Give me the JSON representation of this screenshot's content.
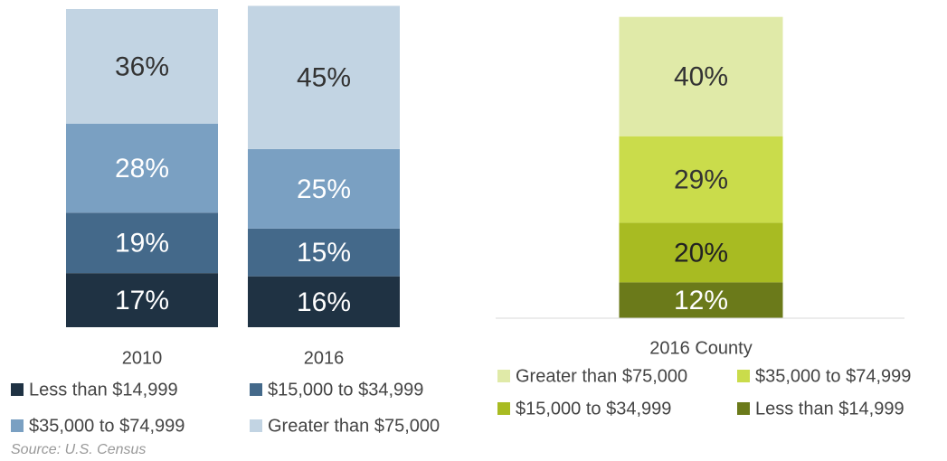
{
  "chart_data": [
    {
      "type": "bar",
      "stacked": true,
      "categories": [
        "2010",
        "2016"
      ],
      "series": [
        {
          "name": "Less than $14,999",
          "color": "#1f3243",
          "label_color": "#ffffff",
          "values": [
            17,
            16
          ],
          "value_labels": [
            "17%",
            "16%"
          ]
        },
        {
          "name": "$15,000 to $34,999",
          "color": "#44698a",
          "label_color": "#ffffff",
          "values": [
            19,
            15
          ],
          "value_labels": [
            "19%",
            "15%"
          ]
        },
        {
          "name": "$35,000 to $74,999",
          "color": "#7aa0c2",
          "label_color": "#ffffff",
          "values": [
            28,
            25
          ],
          "value_labels": [
            "28%",
            "25%"
          ]
        },
        {
          "name": "Greater than $75,000",
          "color": "#c2d4e3",
          "label_color": "#333333",
          "values": [
            36,
            45
          ],
          "value_labels": [
            "36%",
            "45%"
          ]
        }
      ],
      "ylim": [
        0,
        100
      ],
      "baseline": false,
      "reverse_stack": false,
      "source": "Source: U.S. Census"
    },
    {
      "type": "bar",
      "stacked": true,
      "categories": [
        "2016 County"
      ],
      "series": [
        {
          "name": "Greater than $75,000",
          "color": "#e0eaa8",
          "label_color": "#333333",
          "values": [
            40
          ],
          "value_labels": [
            "40%"
          ]
        },
        {
          "name": "$35,000 to $74,999",
          "color": "#cadc4b",
          "label_color": "#333333",
          "values": [
            29
          ],
          "value_labels": [
            "29%"
          ]
        },
        {
          "name": "$15,000 to $34,999",
          "color": "#a8bb22",
          "label_color": "#222222",
          "values": [
            20
          ],
          "value_labels": [
            "20%"
          ]
        },
        {
          "name": "Less than $14,999",
          "color": "#6b7a1a",
          "label_color": "#ffffff",
          "values": [
            12
          ],
          "value_labels": [
            "12%"
          ]
        }
      ],
      "ylim": [
        0,
        100
      ],
      "baseline": true,
      "reverse_stack": true
    }
  ]
}
